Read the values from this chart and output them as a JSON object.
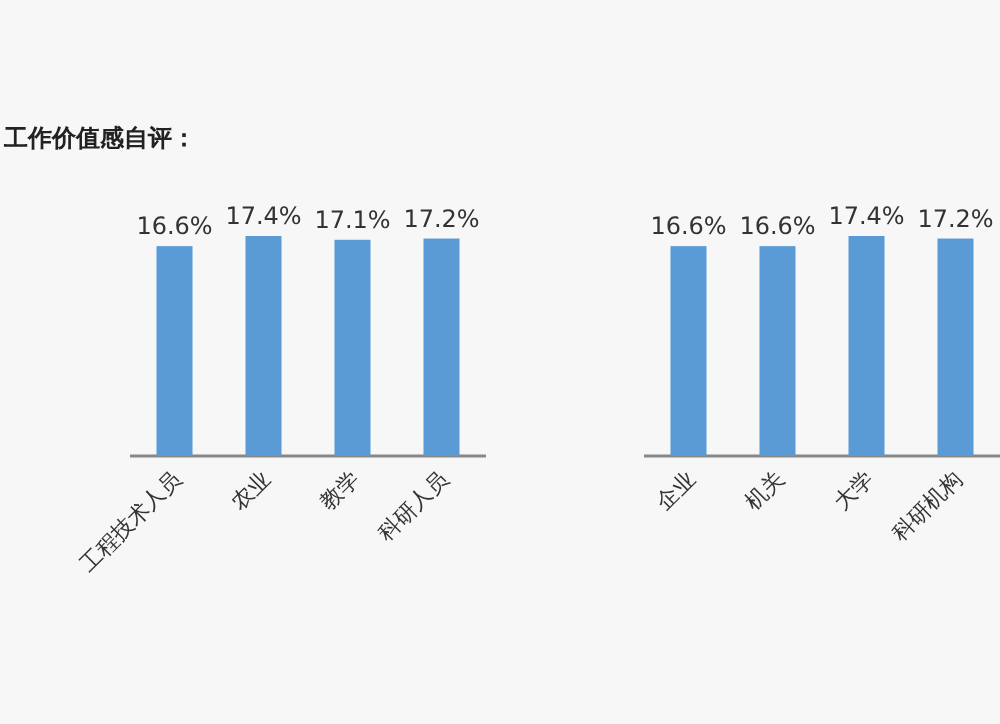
{
  "chart_data": [
    {
      "type": "bar",
      "title": "工作价值感自评：",
      "categories": [
        "工程技术人员",
        "农业",
        "教学",
        "科研人员"
      ],
      "values": [
        16.6,
        17.4,
        17.1,
        17.2
      ],
      "value_labels": [
        "16.6%",
        "17.4%",
        "17.1%",
        "17.2%"
      ],
      "color": "#5b9bd5"
    },
    {
      "type": "bar",
      "categories": [
        "企业",
        "机关",
        "大学",
        "科研机构"
      ],
      "values": [
        16.6,
        16.6,
        17.4,
        17.2
      ],
      "value_labels": [
        "16.6%",
        "16.6%",
        "17.4%",
        "17.2%"
      ],
      "color": "#5b9bd5"
    }
  ]
}
